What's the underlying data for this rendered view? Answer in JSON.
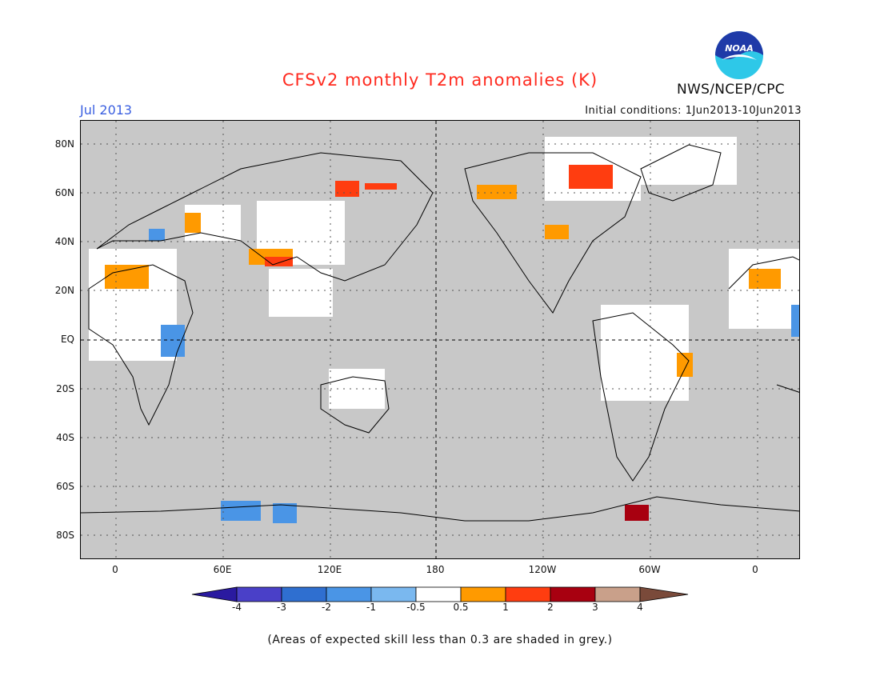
{
  "header": {
    "title": "CFSv2 monthly T2m anomalies (K)",
    "date": "Jul 2013",
    "initial_conditions": "Initial conditions: 1Jun2013-10Jun2013",
    "agency": "NWS/NCEP/CPC",
    "logo_text": "NOAA"
  },
  "axes": {
    "lat_labels": [
      "80N",
      "60N",
      "40N",
      "20N",
      "EQ",
      "20S",
      "40S",
      "60S",
      "80S"
    ],
    "lon_labels": [
      "0",
      "60E",
      "120E",
      "180",
      "120W",
      "60W",
      "0"
    ]
  },
  "colorbar": {
    "tick_labels": [
      "-4",
      "-3",
      "-2",
      "-1",
      "-0.5",
      "0.5",
      "1",
      "2",
      "3",
      "4"
    ],
    "colors": [
      "#2a1aa0",
      "#4a40c8",
      "#2f6fd0",
      "#4a95e6",
      "#7ab8ef",
      "#ffffff",
      "#ff9a00",
      "#ff3d10",
      "#a80010",
      "#c9a08a",
      "#7a4a3a"
    ]
  },
  "footer": {
    "caption": "(Areas of expected skill less than 0.3 are shaded in grey.)"
  },
  "colors": {
    "low_skill_grey": "#c8c8c8",
    "title_red": "#ff2a1f",
    "date_blue": "#3a5fe0"
  }
}
